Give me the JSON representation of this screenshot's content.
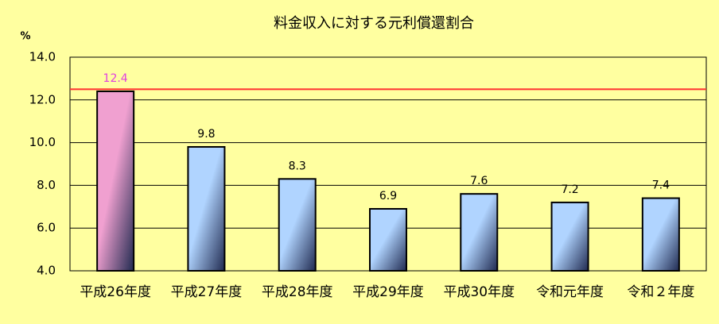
{
  "chart_data": {
    "type": "bar",
    "title": "料金収入に対する元利償還割合",
    "y_unit": "%",
    "categories": [
      "平成26年度",
      "平成27年度",
      "平成28年度",
      "平成29年度",
      "平成30年度",
      "令和元年度",
      "令和２年度"
    ],
    "values": [
      12.4,
      9.8,
      8.3,
      6.9,
      7.6,
      7.2,
      7.4
    ],
    "colors": [
      "#f0a0d0",
      "#b0d4ff",
      "#b0d4ff",
      "#b0d4ff",
      "#b0d4ff",
      "#b0d4ff",
      "#b0d4ff"
    ],
    "value_label_colors": [
      "#e040e0",
      "#000000",
      "#000000",
      "#000000",
      "#000000",
      "#000000",
      "#000000"
    ],
    "ylim": [
      4,
      14
    ],
    "yticks": [
      {
        "value": 4,
        "label": "4.0"
      },
      {
        "value": 6,
        "label": "6.0"
      },
      {
        "value": 8,
        "label": "8.0"
      },
      {
        "value": 10,
        "label": "10.0"
      },
      {
        "value": 12,
        "label": "12.0"
      },
      {
        "value": 14,
        "label": "14.0"
      }
    ],
    "reference_line": 12.5,
    "reference_color": "#ff3030",
    "grid": true
  }
}
